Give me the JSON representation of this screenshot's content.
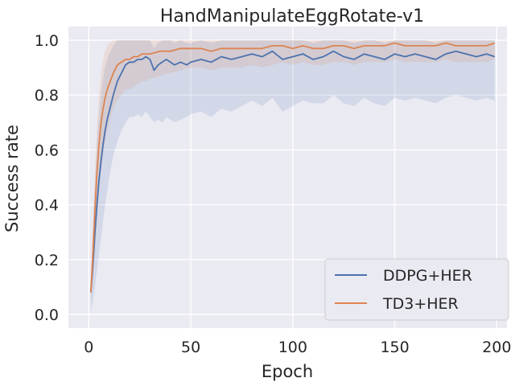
{
  "chart_data": {
    "type": "line",
    "title": "HandManipulateEggRotate-v1",
    "xlabel": "Epoch",
    "ylabel": "Success rate",
    "xlim": [
      -10,
      205
    ],
    "ylim": [
      -0.05,
      1.05
    ],
    "xticks": [
      "0",
      "50",
      "100",
      "150",
      "200"
    ],
    "yticks": [
      "0.0",
      "0.2",
      "0.4",
      "0.6",
      "0.8",
      "1.0"
    ],
    "grid": true,
    "legend_position": "lower-right",
    "series": [
      {
        "name": "DDPG+HER",
        "color": "#4c72b0",
        "x": [
          1,
          2,
          3,
          4,
          5,
          6,
          7,
          8,
          9,
          10,
          12,
          14,
          16,
          18,
          20,
          22,
          24,
          26,
          28,
          30,
          32,
          34,
          36,
          38,
          40,
          42,
          45,
          48,
          50,
          55,
          60,
          65,
          70,
          75,
          80,
          85,
          90,
          95,
          100,
          105,
          110,
          115,
          120,
          125,
          130,
          135,
          140,
          145,
          150,
          155,
          160,
          165,
          170,
          175,
          180,
          185,
          190,
          195,
          199
        ],
        "values": [
          0.08,
          0.18,
          0.3,
          0.4,
          0.49,
          0.56,
          0.62,
          0.67,
          0.71,
          0.74,
          0.8,
          0.85,
          0.88,
          0.91,
          0.92,
          0.92,
          0.93,
          0.93,
          0.94,
          0.93,
          0.89,
          0.91,
          0.92,
          0.93,
          0.92,
          0.91,
          0.92,
          0.91,
          0.92,
          0.93,
          0.92,
          0.94,
          0.93,
          0.94,
          0.95,
          0.94,
          0.96,
          0.93,
          0.94,
          0.95,
          0.93,
          0.94,
          0.96,
          0.94,
          0.93,
          0.95,
          0.94,
          0.93,
          0.95,
          0.94,
          0.95,
          0.94,
          0.93,
          0.95,
          0.96,
          0.95,
          0.94,
          0.95,
          0.94
        ],
        "lower": [
          0.01,
          0.05,
          0.1,
          0.16,
          0.22,
          0.28,
          0.34,
          0.4,
          0.45,
          0.5,
          0.58,
          0.63,
          0.67,
          0.7,
          0.72,
          0.72,
          0.73,
          0.72,
          0.74,
          0.72,
          0.7,
          0.71,
          0.7,
          0.72,
          0.71,
          0.7,
          0.71,
          0.72,
          0.73,
          0.74,
          0.72,
          0.75,
          0.74,
          0.76,
          0.78,
          0.76,
          0.79,
          0.74,
          0.76,
          0.78,
          0.77,
          0.77,
          0.8,
          0.77,
          0.76,
          0.79,
          0.77,
          0.76,
          0.79,
          0.78,
          0.79,
          0.78,
          0.77,
          0.79,
          0.8,
          0.79,
          0.78,
          0.79,
          0.78
        ],
        "upper": [
          0.12,
          0.3,
          0.48,
          0.62,
          0.72,
          0.8,
          0.86,
          0.9,
          0.93,
          0.95,
          0.98,
          1.0,
          1.0,
          1.0,
          1.0,
          1.0,
          1.0,
          1.0,
          1.0,
          1.0,
          0.97,
          0.99,
          1.0,
          1.0,
          1.0,
          0.99,
          1.0,
          0.99,
          0.99,
          1.0,
          0.99,
          1.0,
          1.0,
          1.0,
          1.0,
          1.0,
          1.0,
          1.0,
          1.0,
          1.0,
          0.99,
          1.0,
          1.0,
          1.0,
          0.99,
          1.0,
          1.0,
          0.99,
          1.0,
          1.0,
          1.0,
          1.0,
          0.99,
          1.0,
          1.0,
          1.0,
          1.0,
          1.0,
          1.0
        ]
      },
      {
        "name": "TD3+HER",
        "color": "#dd8452",
        "x": [
          1,
          2,
          3,
          4,
          5,
          6,
          7,
          8,
          9,
          10,
          12,
          14,
          16,
          18,
          20,
          22,
          24,
          26,
          28,
          30,
          35,
          40,
          45,
          50,
          55,
          60,
          65,
          70,
          75,
          80,
          85,
          90,
          95,
          100,
          105,
          110,
          115,
          120,
          125,
          130,
          135,
          140,
          145,
          150,
          155,
          160,
          165,
          170,
          175,
          180,
          185,
          190,
          195,
          199
        ],
        "values": [
          0.08,
          0.22,
          0.38,
          0.52,
          0.62,
          0.7,
          0.75,
          0.79,
          0.82,
          0.84,
          0.88,
          0.91,
          0.92,
          0.93,
          0.93,
          0.94,
          0.94,
          0.95,
          0.95,
          0.95,
          0.96,
          0.96,
          0.97,
          0.97,
          0.97,
          0.96,
          0.97,
          0.97,
          0.97,
          0.97,
          0.97,
          0.98,
          0.98,
          0.97,
          0.98,
          0.97,
          0.97,
          0.98,
          0.98,
          0.97,
          0.98,
          0.98,
          0.98,
          0.99,
          0.98,
          0.98,
          0.98,
          0.98,
          0.99,
          0.98,
          0.98,
          0.98,
          0.98,
          0.99
        ],
        "lower": [
          0.05,
          0.12,
          0.22,
          0.34,
          0.44,
          0.52,
          0.58,
          0.63,
          0.67,
          0.7,
          0.75,
          0.78,
          0.8,
          0.82,
          0.82,
          0.83,
          0.84,
          0.85,
          0.85,
          0.86,
          0.87,
          0.88,
          0.89,
          0.9,
          0.9,
          0.89,
          0.9,
          0.9,
          0.9,
          0.91,
          0.9,
          0.91,
          0.92,
          0.91,
          0.92,
          0.91,
          0.91,
          0.92,
          0.92,
          0.91,
          0.92,
          0.92,
          0.92,
          0.93,
          0.92,
          0.92,
          0.92,
          0.92,
          0.93,
          0.92,
          0.92,
          0.92,
          0.92,
          0.93
        ],
        "upper": [
          0.11,
          0.32,
          0.52,
          0.68,
          0.8,
          0.88,
          0.93,
          0.96,
          0.98,
          0.99,
          1.0,
          1.0,
          1.0,
          1.0,
          1.0,
          1.0,
          1.0,
          1.0,
          1.0,
          1.0,
          1.0,
          1.0,
          1.0,
          1.0,
          1.0,
          1.0,
          1.0,
          1.0,
          1.0,
          1.0,
          1.0,
          1.0,
          1.0,
          1.0,
          1.0,
          1.0,
          1.0,
          1.0,
          1.0,
          1.0,
          1.0,
          1.0,
          1.0,
          1.0,
          1.0,
          1.0,
          1.0,
          1.0,
          1.0,
          1.0,
          1.0,
          1.0,
          1.0,
          1.0
        ]
      }
    ]
  }
}
